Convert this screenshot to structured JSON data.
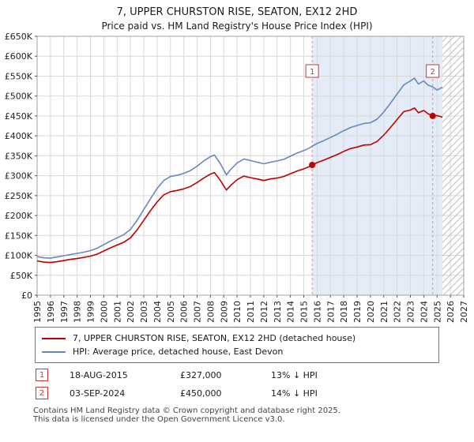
{
  "chart_data": {
    "type": "line",
    "title": "7, UPPER CHURSTON RISE, SEATON, EX12 2HD",
    "subtitle": "Price paid vs. HM Land Registry's House Price Index (HPI)",
    "units": "GBP thousands",
    "xlim": [
      1995,
      2027
    ],
    "ylim": [
      0,
      650
    ],
    "grid": true,
    "legend_position": "bottom",
    "yticks": [
      0,
      50,
      100,
      150,
      200,
      250,
      300,
      350,
      400,
      450,
      500,
      550,
      600,
      650
    ],
    "ytick_labels": [
      "£0",
      "£50K",
      "£100K",
      "£150K",
      "£200K",
      "£250K",
      "£300K",
      "£350K",
      "£400K",
      "£450K",
      "£500K",
      "£550K",
      "£600K",
      "£650K"
    ],
    "xticks": [
      1995,
      1996,
      1997,
      1998,
      1999,
      2000,
      2001,
      2002,
      2003,
      2004,
      2005,
      2006,
      2007,
      2008,
      2009,
      2010,
      2011,
      2012,
      2013,
      2014,
      2015,
      2016,
      2017,
      2018,
      2019,
      2020,
      2021,
      2022,
      2023,
      2024,
      2025,
      2026,
      2027
    ],
    "x": [
      1995,
      1995.5,
      1996,
      1996.5,
      1997,
      1997.5,
      1998,
      1998.5,
      1999,
      1999.5,
      2000,
      2000.5,
      2001,
      2001.5,
      2002,
      2002.5,
      2003,
      2003.5,
      2004,
      2004.5,
      2005,
      2005.5,
      2006,
      2006.5,
      2007,
      2007.5,
      2008,
      2008.3,
      2008.75,
      2009.2,
      2009.5,
      2010,
      2010.5,
      2011,
      2011.5,
      2012,
      2012.5,
      2013,
      2013.5,
      2014,
      2014.5,
      2015,
      2015.5,
      2015.63,
      2016,
      2016.5,
      2017,
      2017.5,
      2018,
      2018.5,
      2019,
      2019.5,
      2020,
      2020.5,
      2021,
      2021.5,
      2022,
      2022.5,
      2023,
      2023.3,
      2023.6,
      2024,
      2024.3,
      2024.67,
      2025,
      2025.4
    ],
    "series": [
      {
        "name": "7, UPPER CHURSTON RISE, SEATON, EX12 2HD (detached house)",
        "color": "#c00000",
        "values": [
          86,
          83,
          82,
          84,
          87,
          90,
          92,
          95,
          98,
          103,
          111,
          119,
          126,
          133,
          144,
          164,
          188,
          212,
          234,
          252,
          260,
          263,
          267,
          273,
          283,
          294,
          304,
          308,
          288,
          264,
          275,
          290,
          299,
          295,
          292,
          288,
          292,
          294,
          298,
          305,
          312,
          317,
          324,
          327,
          333,
          339,
          346,
          353,
          361,
          368,
          372,
          377,
          378,
          386,
          402,
          421,
          441,
          461,
          465,
          470,
          458,
          464,
          456,
          450,
          451,
          447
        ]
      },
      {
        "name": "HPI: Average price, detached house, East Devon",
        "color": "#6688bb",
        "values": [
          97,
          94,
          93,
          96,
          99,
          102,
          105,
          108,
          112,
          118,
          127,
          136,
          144,
          152,
          165,
          188,
          215,
          242,
          268,
          288,
          298,
          301,
          306,
          313,
          324,
          337,
          348,
          352,
          330,
          302,
          315,
          332,
          342,
          338,
          334,
          330,
          334,
          337,
          341,
          349,
          357,
          363,
          371,
          374,
          381,
          388,
          396,
          404,
          413,
          421,
          426,
          431,
          433,
          442,
          460,
          482,
          505,
          528,
          538,
          545,
          530,
          538,
          528,
          523,
          515,
          522
        ]
      }
    ],
    "sales": [
      {
        "label": "1",
        "x": 2015.63,
        "y": 327
      },
      {
        "label": "2",
        "x": 2024.67,
        "y": 450
      }
    ],
    "shaded_region": [
      2015.63,
      2025.4
    ],
    "hatched_region": [
      2025.4,
      2027
    ]
  },
  "colors": {
    "property": "#c00000",
    "hpi": "#6688bb",
    "shade": "#e3ecf7",
    "grid": "#d9d9d9",
    "dashed_sale_line": "#e88a8a",
    "hatch": "#bfbfbf",
    "marker_box": "#cc3333",
    "axis": "#a0a0a0"
  },
  "transactions": [
    {
      "num": "1",
      "date": "18-AUG-2015",
      "price": "£327,000",
      "hpi": "13% ↓ HPI"
    },
    {
      "num": "2",
      "date": "03-SEP-2024",
      "price": "£450,000",
      "hpi": "14% ↓ HPI"
    }
  ],
  "footer": {
    "line1": "Contains HM Land Registry data © Crown copyright and database right 2025.",
    "line2": "This data is licensed under the Open Government Licence v3.0."
  }
}
